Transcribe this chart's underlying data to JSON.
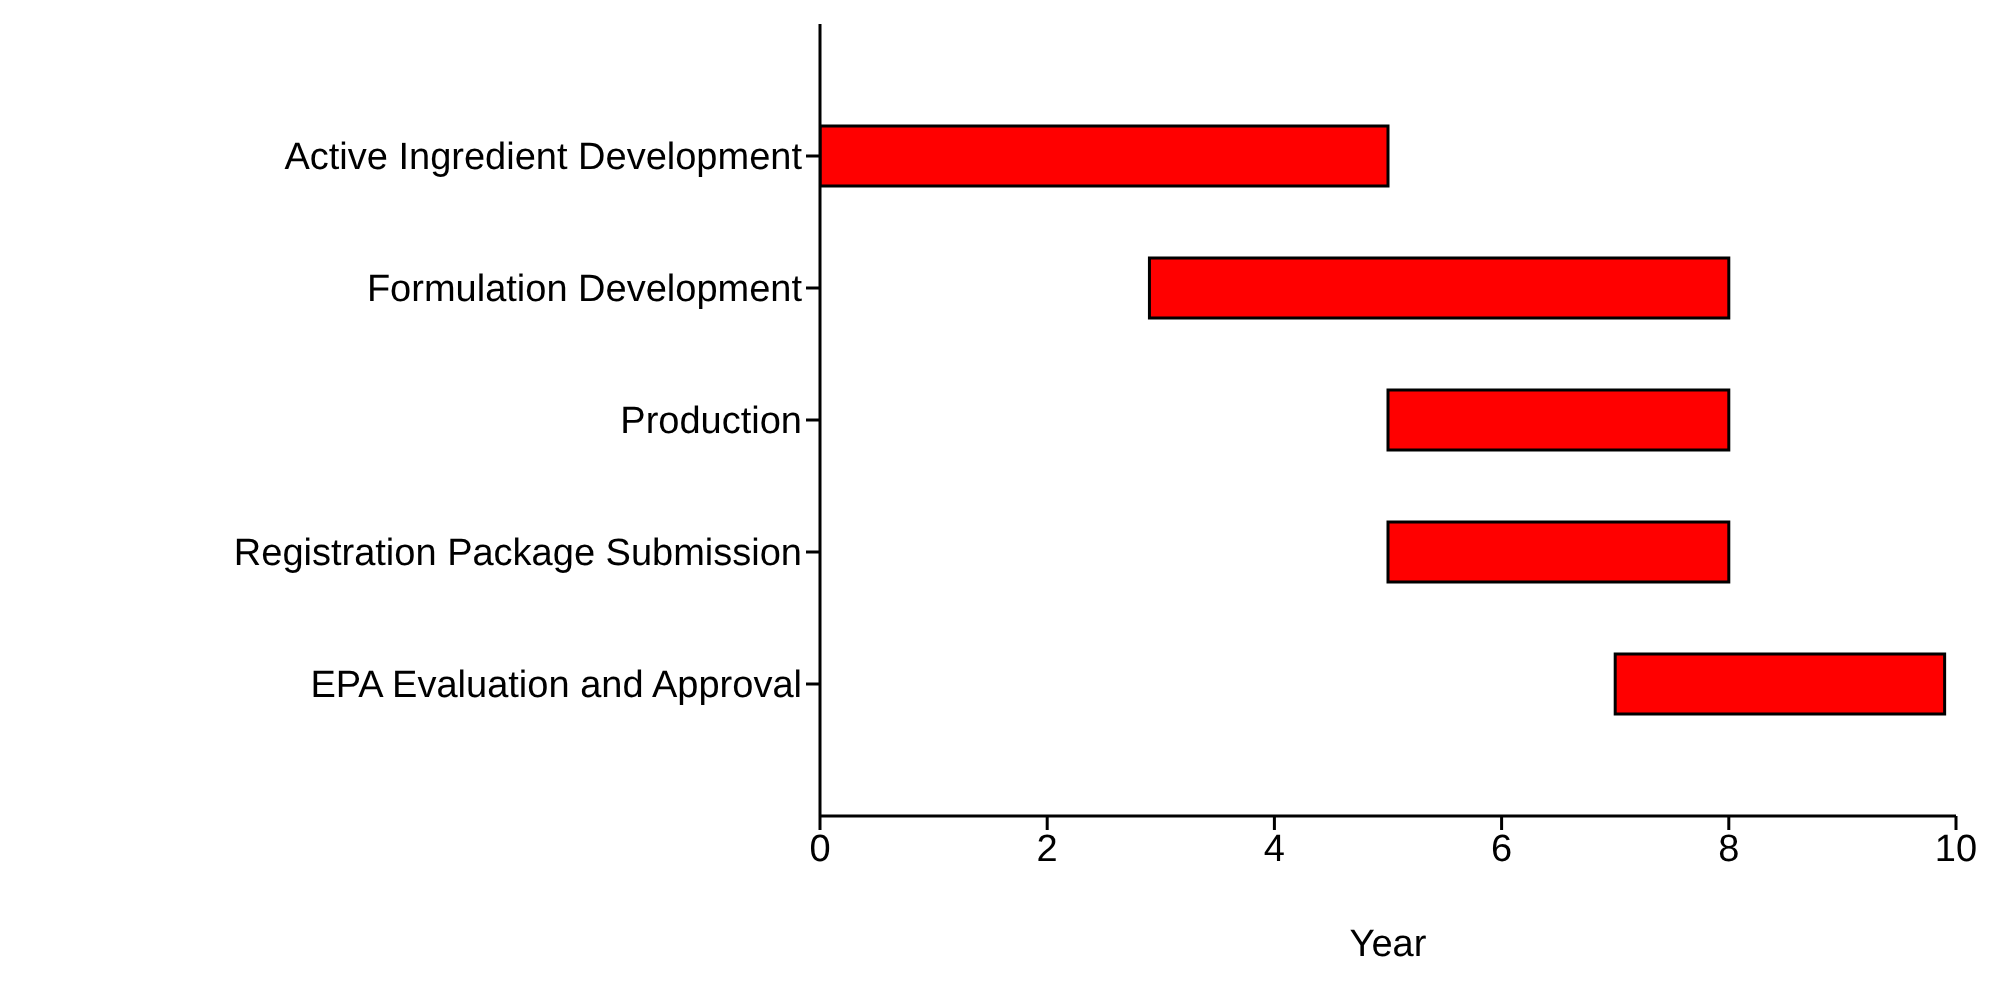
{
  "chart_data": {
    "type": "bar",
    "orientation": "horizontal",
    "xlabel": "Year",
    "categories": [
      "Active Ingredient Development",
      "Formulation Development",
      "Production",
      "Registration Package Submission",
      "EPA Evaluation and Approval"
    ],
    "base": [
      0,
      2.9,
      5,
      5,
      7
    ],
    "values": [
      5,
      5.1,
      3,
      3,
      2.9
    ],
    "color": "#ff0000",
    "xlim": [
      0,
      10
    ],
    "xticks": [
      0,
      2,
      4,
      6,
      8,
      10
    ],
    "grid": false,
    "legend": false
  }
}
